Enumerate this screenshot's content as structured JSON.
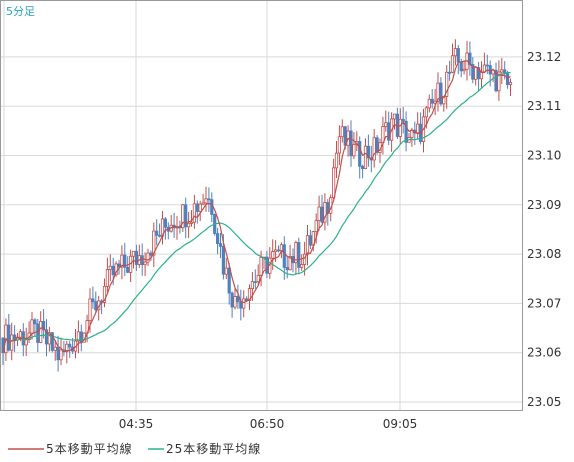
{
  "chart_data": {
    "type": "candlestick",
    "interval_label": "5分足",
    "x_tick_labels": [
      "04:35",
      "06:50",
      "09:05"
    ],
    "y_tick_labels": [
      "23.05",
      "23.06",
      "23.07",
      "23.08",
      "23.09",
      "23.10",
      "23.11",
      "23.12"
    ],
    "ylim": [
      23.047,
      23.126
    ],
    "grid": true,
    "legend_position": "bottom-left",
    "colors": {
      "up": "#c0504d",
      "down": "#4f81bd",
      "ma5": "#c0504d",
      "ma25": "#2bb28c"
    },
    "series": [
      {
        "name": "5本移動平均線",
        "type": "line"
      },
      {
        "name": "25本移動平均線",
        "type": "line"
      }
    ]
  }
}
